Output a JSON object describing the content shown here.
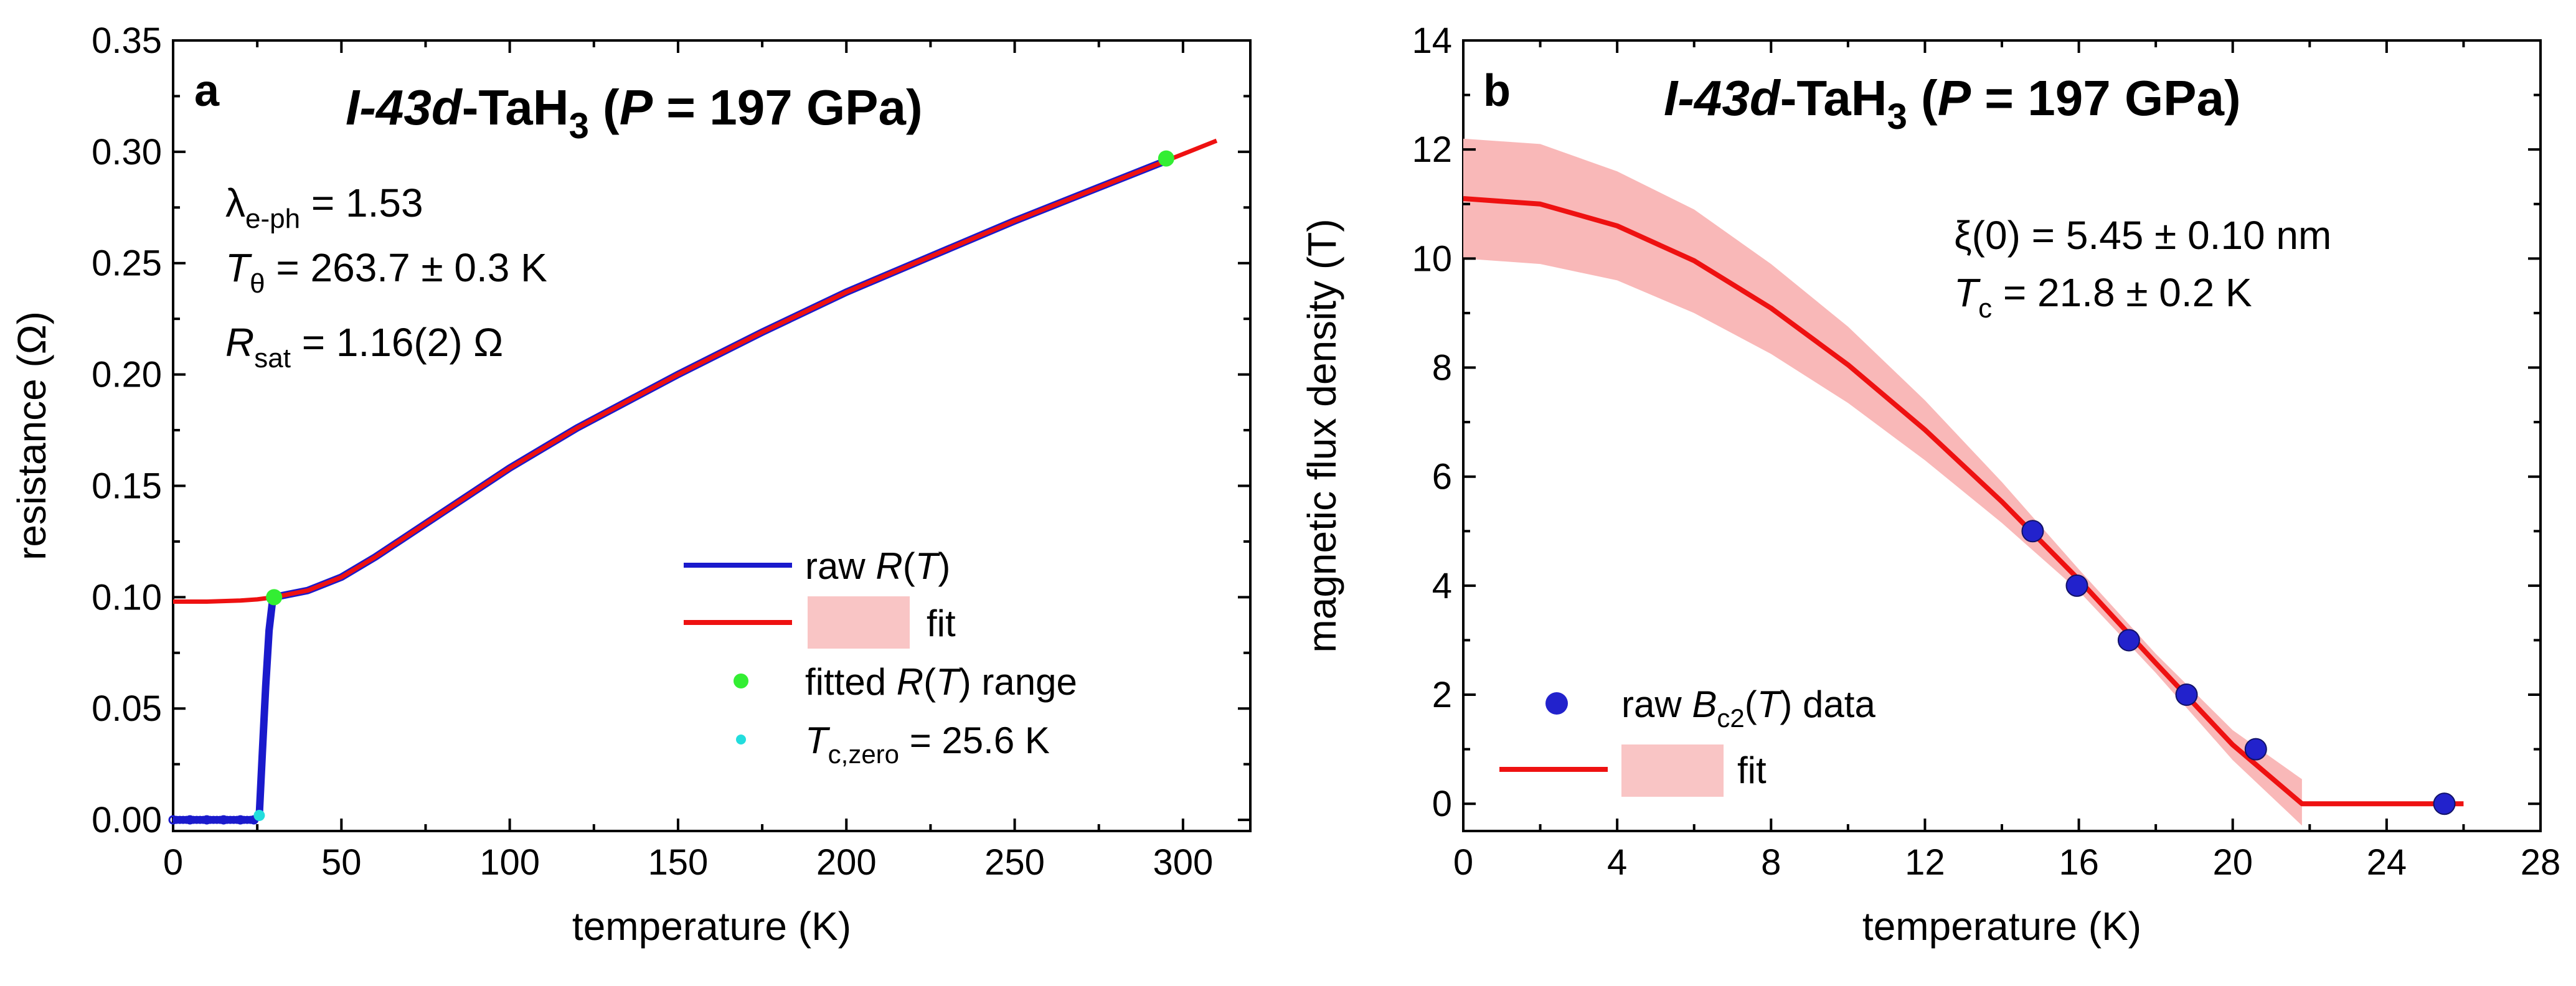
{
  "colors": {
    "raw": "#1a1acc",
    "fit": "#ee1111",
    "fit_band": "#f9b8b8",
    "fitted_range": "#33ee33",
    "tc_zero": "#22dddd",
    "bc2_point": "#2222cc"
  },
  "panel_a": {
    "letter": "a",
    "title": {
      "phase": "I-43d",
      "compound_main": "-TaH",
      "compound_sub": "3",
      "pressure_open": " (",
      "pressure_var": "P",
      "pressure_val": " = 197 GPa)"
    },
    "annotations": {
      "lambda_main": "λ",
      "lambda_sub": "e-ph",
      "lambda_val": " = 1.53",
      "theta_main": "T",
      "theta_sub": "θ",
      "theta_val": " = 263.7 ± 0.3 K",
      "rsat_main": "R",
      "rsat_sub": "sat",
      "rsat_val": " = 1.16(2) Ω"
    },
    "legend": {
      "raw_pre": "raw ",
      "raw_var": "R",
      "raw_post": "(",
      "raw_arg": "T",
      "raw_close": ")",
      "fit": "fit",
      "fitted_pre": "fitted ",
      "fitted_var": "R",
      "fitted_mid": "(",
      "fitted_arg": "T",
      "fitted_post": ") range",
      "tc_main": "T",
      "tc_sub": "c,zero",
      "tc_val": " = 25.6 K"
    }
  },
  "panel_b": {
    "letter": "b",
    "title": {
      "phase": "I-43d",
      "compound_main": "-TaH",
      "compound_sub": "3",
      "pressure_open": " (",
      "pressure_var": "P",
      "pressure_val": " = 197 GPa)"
    },
    "annotations": {
      "xi": "ξ(0) = 5.45 ± 0.10 nm",
      "tc_main": "T",
      "tc_sub": "c",
      "tc_val": " = 21.8 ± 0.2 K"
    },
    "legend": {
      "raw_pre": "raw ",
      "raw_var": "B",
      "raw_sub": "c2",
      "raw_open": "(",
      "raw_arg": "T",
      "raw_post": ") data",
      "fit": "fit"
    }
  },
  "chart_data": [
    {
      "type": "line",
      "panel": "a",
      "xlabel": "temperature (K)",
      "ylabel": "resistance (Ω)",
      "xlim": [
        0,
        320
      ],
      "ylim": [
        -0.005,
        0.35
      ],
      "xticks": [
        0,
        50,
        100,
        150,
        200,
        250,
        300
      ],
      "yticks": [
        0.0,
        0.05,
        0.1,
        0.15,
        0.2,
        0.25,
        0.3,
        0.35
      ],
      "ytick_labels": [
        "0.00",
        "0.05",
        "0.10",
        "0.15",
        "0.20",
        "0.25",
        "0.30",
        "0.35"
      ],
      "series": [
        {
          "name": "raw R(T)",
          "x": [
            0,
            5,
            10,
            15,
            20,
            24,
            25.6,
            26.5,
            27.5,
            28.5,
            29.5,
            30,
            40,
            50,
            60,
            70,
            80,
            100,
            120,
            150,
            175,
            200,
            225,
            250,
            275,
            295
          ],
          "y": [
            0.0,
            0.0,
            0.0,
            0.0,
            0.0,
            0.0,
            0.002,
            0.03,
            0.06,
            0.085,
            0.098,
            0.1,
            0.103,
            0.109,
            0.118,
            0.128,
            0.138,
            0.158,
            0.176,
            0.2,
            0.219,
            0.237,
            0.253,
            0.269,
            0.284,
            0.296
          ]
        },
        {
          "name": "fit",
          "x": [
            0,
            10,
            20,
            25,
            30,
            40,
            50,
            60,
            70,
            80,
            100,
            120,
            150,
            175,
            200,
            225,
            250,
            275,
            300,
            310
          ],
          "y": [
            0.098,
            0.098,
            0.0985,
            0.099,
            0.1,
            0.103,
            0.109,
            0.118,
            0.128,
            0.138,
            0.158,
            0.176,
            0.2,
            0.219,
            0.237,
            0.253,
            0.269,
            0.284,
            0.299,
            0.305
          ]
        },
        {
          "name": "fitted R(T) range",
          "x": [
            30,
            295
          ],
          "y": [
            0.1,
            0.297
          ]
        },
        {
          "name": "Tc,zero = 25.6 K",
          "x": [
            25.6
          ],
          "y": [
            0.002
          ]
        }
      ]
    },
    {
      "type": "scatter",
      "panel": "b",
      "xlabel": "temperature (K)",
      "ylabel": "magnetic flux density (T)",
      "xlim": [
        0,
        28
      ],
      "ylim": [
        -0.5,
        14
      ],
      "xticks": [
        0,
        4,
        8,
        12,
        16,
        20,
        24,
        28
      ],
      "yticks": [
        0,
        2,
        4,
        6,
        8,
        10,
        12,
        14
      ],
      "series": [
        {
          "name": "raw Bc2(T) data",
          "x": [
            14.8,
            15.95,
            17.3,
            18.8,
            20.6,
            25.5
          ],
          "y": [
            5,
            4,
            3,
            2,
            1,
            0
          ]
        },
        {
          "name": "fit",
          "x": [
            0,
            2,
            4,
            6,
            8,
            10,
            12,
            14,
            16,
            18,
            20,
            21.8,
            26
          ],
          "y": [
            11.1,
            11.0,
            10.6,
            9.96,
            9.09,
            8.05,
            6.86,
            5.54,
            4.11,
            2.58,
            1.08,
            0,
            0
          ],
          "band_upper": [
            12.2,
            12.1,
            11.6,
            10.9,
            9.9,
            8.75,
            7.4,
            5.9,
            4.3,
            2.75,
            1.35,
            0.45
          ],
          "band_lower": [
            10.0,
            9.9,
            9.6,
            9.0,
            8.25,
            7.35,
            6.3,
            5.15,
            3.9,
            2.4,
            0.8,
            -0.4
          ],
          "band_x": [
            0,
            2,
            4,
            6,
            8,
            10,
            12,
            14,
            16,
            18,
            20,
            21.8
          ]
        }
      ]
    }
  ]
}
